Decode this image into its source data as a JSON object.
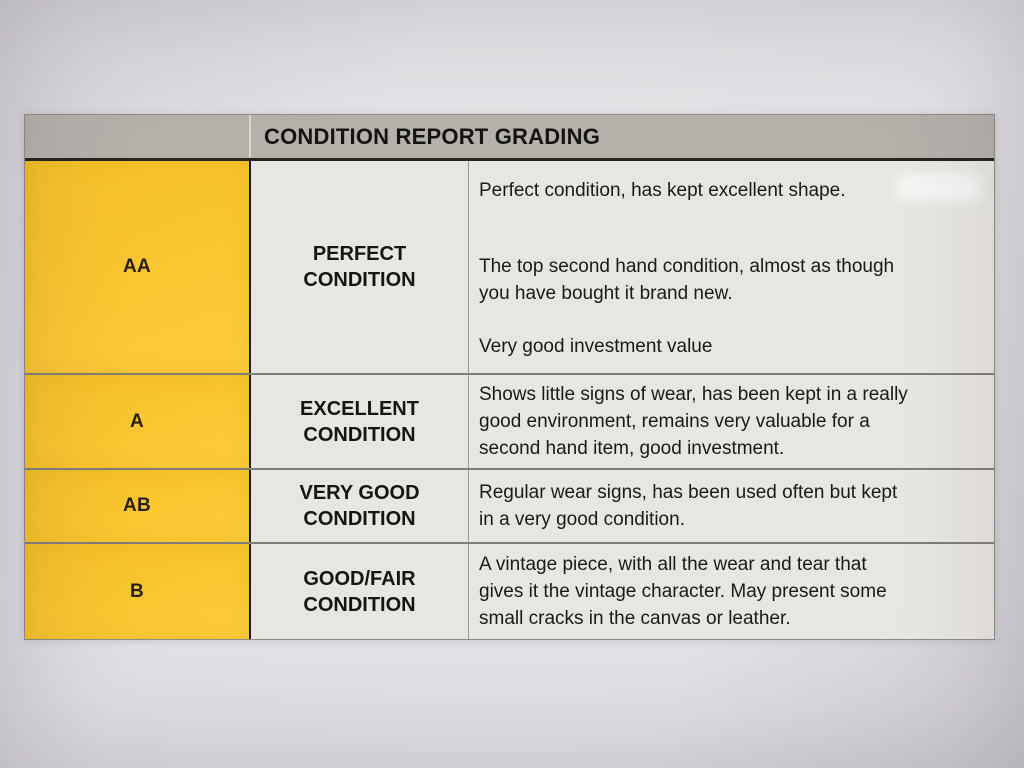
{
  "document": {
    "title": "CONDITION REPORT GRADING",
    "rows": [
      {
        "grade": "AA",
        "condition": "PERFECT\nCONDITION",
        "paragraphs": [
          "Perfect condition, has kept excellent shape.",
          "The top second hand condition, almost as though\nyou have bought it brand new.",
          "Very good investment value"
        ]
      },
      {
        "grade": "A",
        "condition": "EXCELLENT\nCONDITION",
        "paragraphs": [
          "Shows little signs of wear, has been kept in a really\ngood environment, remains very valuable for a\nsecond hand item, good investment."
        ]
      },
      {
        "grade": "AB",
        "condition": "VERY GOOD\nCONDITION",
        "paragraphs": [
          "Regular wear signs, has been used often but kept\nin a very good condition."
        ]
      },
      {
        "grade": "B",
        "condition": "GOOD/FAIR\nCONDITION",
        "paragraphs": [
          "A vintage piece, with all the wear and tear that\ngives it the vintage character. May present some\nsmall cracks in the canvas or leather."
        ]
      }
    ],
    "colors": {
      "grade_column_bg": "#F9C52F",
      "header_bg": "#B4B0AA",
      "cell_bg": "#E8E6E1",
      "text": "#1B1A18"
    }
  }
}
